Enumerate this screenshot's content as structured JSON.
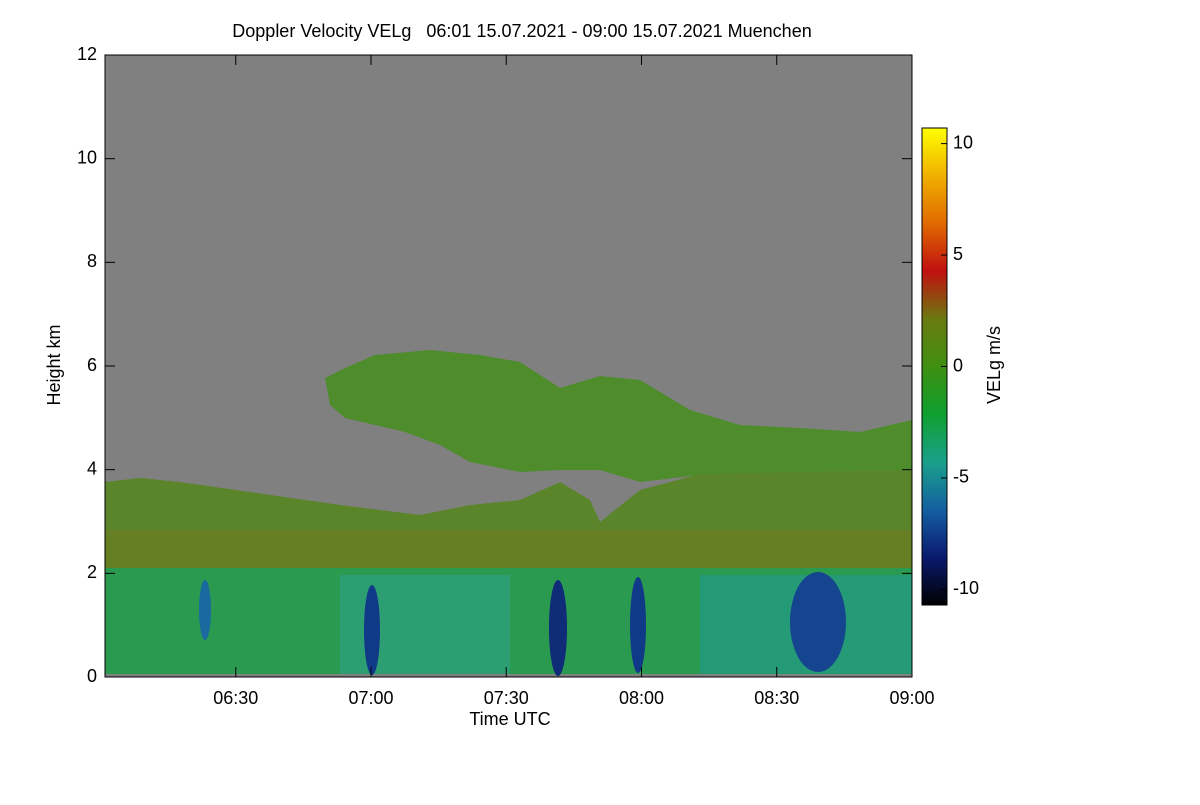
{
  "chart_data": {
    "type": "heatmap",
    "title": "Doppler Velocity VELg   06:01 15.07.2021 - 09:00 15.07.2021 Muenchen",
    "x_label": "Time UTC",
    "y_label": "Height km",
    "xlim": [
      361,
      540
    ],
    "xticks": [
      {
        "value": 390,
        "label": "06:30"
      },
      {
        "value": 420,
        "label": "07:00"
      },
      {
        "value": 450,
        "label": "07:30"
      },
      {
        "value": 480,
        "label": "08:00"
      },
      {
        "value": 510,
        "label": "08:30"
      },
      {
        "value": 540,
        "label": "09:00"
      }
    ],
    "ylim": [
      0,
      12
    ],
    "yticks": [
      0,
      2,
      4,
      6,
      8,
      10,
      12
    ],
    "colorbar": {
      "label": "VELg m/s",
      "lim": [
        -10.7,
        10.7
      ],
      "ticks": [
        -10,
        -5,
        0,
        5,
        10
      ],
      "colors": [
        "#000000",
        "#0a1a6e",
        "#1460a0",
        "#1aa08a",
        "#10a030",
        "#3f8f10",
        "#6a7a10",
        "#c01010",
        "#e06a00",
        "#f0b000",
        "#ffff00"
      ]
    }
  }
}
